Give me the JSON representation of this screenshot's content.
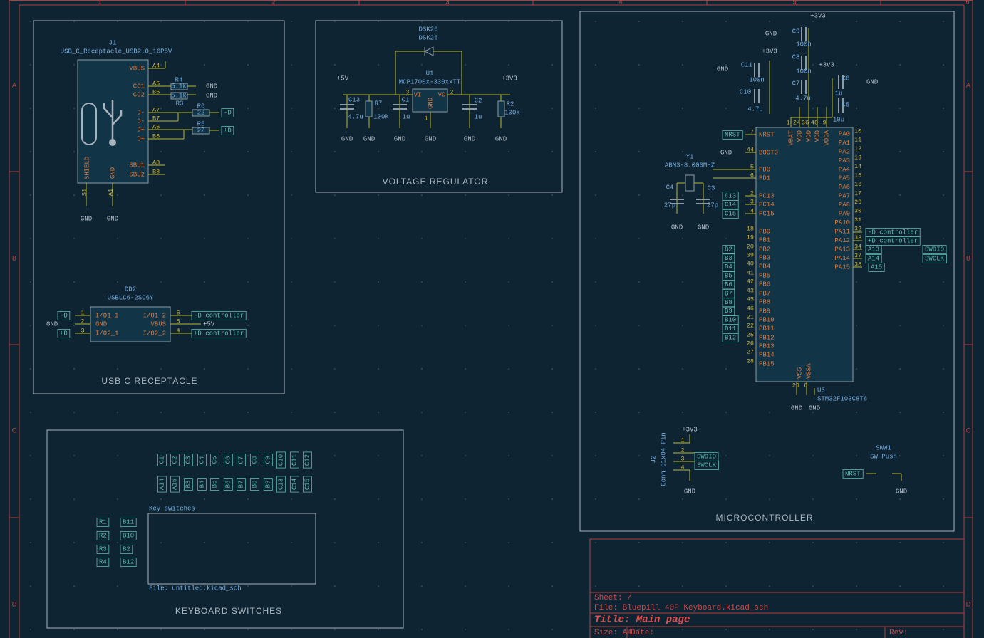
{
  "frame": {
    "columns": [
      "1",
      "2",
      "3",
      "4",
      "5",
      "6"
    ],
    "rows": [
      "A",
      "B",
      "C",
      "D"
    ]
  },
  "title_block": {
    "sheet": "Sheet: /",
    "file": "File: Bluepill 40P Keyboard.kicad_sch",
    "title": "Title: Main page",
    "size": "Size: A4",
    "date": "Date:",
    "rev": "Rev:"
  },
  "usb": {
    "title": "USB C RECEPTACLE",
    "j1": {
      "ref": "J1",
      "value": "USB_C_Receptacle_USB2.0_16P5V",
      "pin_names": [
        "VBUS",
        "CC1",
        "CC2",
        "D-",
        "D-",
        "D+",
        "D+",
        "SBU1",
        "SBU2"
      ],
      "pin_numbers": [
        "A4",
        "A5",
        "B5",
        "A7",
        "B7",
        "A6",
        "B6",
        "A8",
        "B8"
      ],
      "bottom_names": [
        "SHIELD",
        "GND"
      ],
      "bottom_numbers": [
        "S1",
        "A1"
      ]
    },
    "resistors": [
      {
        "ref": "R4",
        "value": "5.1k"
      },
      {
        "ref": "R3",
        "value": "5.1k"
      },
      {
        "ref": "R6",
        "value": "22"
      },
      {
        "ref": "R5",
        "value": "22"
      }
    ],
    "power": [
      "GND",
      "GND",
      "GND",
      "GND"
    ],
    "labels": [
      "-D",
      "+D"
    ],
    "dd2": {
      "ref": "DD2",
      "value": "USBLC6-2SC6Y",
      "pin_names": [
        "I/O1_1",
        "GND",
        "I/O2_1",
        "I/O1_2",
        "VBUS",
        "I/O2_2"
      ],
      "pin_numbers": [
        "1",
        "2",
        "3",
        "6",
        "5",
        "4"
      ],
      "labels": [
        "-D",
        "GND",
        "+D",
        "-D controller",
        "+5V",
        "+D controller"
      ]
    }
  },
  "regulator": {
    "title": "VOLTAGE REGULATOR",
    "d": {
      "ref": "DSK26",
      "value": "DSK26"
    },
    "u1": {
      "ref": "U1",
      "value": "MCP1700x-330xxTT",
      "pin_names": [
        "VI",
        "VO",
        "GND"
      ],
      "pin_numbers": [
        "3",
        "2",
        "1"
      ]
    },
    "power": [
      "+5V",
      "+3V3"
    ],
    "parts": [
      {
        "ref": "C13",
        "value": "4.7u"
      },
      {
        "ref": "R7",
        "value": "100k"
      },
      {
        "ref": "C1",
        "value": "1u"
      },
      {
        "ref": "C2",
        "value": "1u"
      },
      {
        "ref": "R2",
        "value": "100k"
      }
    ],
    "grounds": [
      "GND",
      "GND",
      "GND",
      "GND",
      "GND",
      "GND"
    ]
  },
  "keyboard": {
    "title": "KEYBOARD SWITCHES",
    "sheet_name": "Key switches",
    "sheet_file": "File: untitled.kicad_sch",
    "top_labels": [
      "C1",
      "C2",
      "C3",
      "C4",
      "C5",
      "C6",
      "C7",
      "C8",
      "C9",
      "C10",
      "C11",
      "C12"
    ],
    "bottom_labels": [
      "A14",
      "A15",
      "B3",
      "B4",
      "B5",
      "B6",
      "B7",
      "B8",
      "B9",
      "C13",
      "C14",
      "C15"
    ],
    "rows": [
      "R1",
      "R2",
      "R3",
      "R4"
    ],
    "row_labels": [
      "B11",
      "B10",
      "B2",
      "B12"
    ]
  },
  "mcu": {
    "title": "MICROCONTROLLER",
    "caps": [
      {
        "ref": "C9",
        "value": "100n"
      },
      {
        "ref": "C8",
        "value": "100n"
      },
      {
        "ref": "C11",
        "value": "100n"
      },
      {
        "ref": "C7",
        "value": "4.7u"
      },
      {
        "ref": "C10",
        "value": "4.7u"
      },
      {
        "ref": "C6",
        "value": "1u"
      },
      {
        "ref": "C5",
        "value": "10u"
      }
    ],
    "cap_power": [
      "+3V3",
      "+3V3",
      "+3V3",
      "GND",
      "GND",
      "GND"
    ],
    "u3": {
      "ref": "U3",
      "value": "STM32F103C8T6",
      "top_names": [
        "VBAT",
        "VDD",
        "VDD",
        "VDD",
        "VDDA"
      ],
      "top_numbers": [
        "1",
        "24",
        "36",
        "48",
        "9"
      ],
      "left_names": [
        "NRST",
        "BOOT0",
        "PD0",
        "PD1",
        "PC13",
        "PC14",
        "PC15",
        "PB0",
        "PB1",
        "PB2",
        "PB3",
        "PB4",
        "PB5",
        "PB6",
        "PB7",
        "PB8",
        "PB9",
        "PB10",
        "PB11",
        "PB12",
        "PB13",
        "PB14",
        "PB15"
      ],
      "left_numbers": [
        "7",
        "44",
        "5",
        "6",
        "2",
        "3",
        "4",
        "18",
        "19",
        "20",
        "39",
        "40",
        "41",
        "42",
        "43",
        "45",
        "46",
        "21",
        "22",
        "25",
        "26",
        "27",
        "28"
      ],
      "right_names": [
        "PA0",
        "PA1",
        "PA2",
        "PA3",
        "PA4",
        "PA5",
        "PA6",
        "PA7",
        "PA8",
        "PA9",
        "PA10",
        "PA11",
        "PA12",
        "PA13",
        "PA14",
        "PA15"
      ],
      "right_numbers": [
        "10",
        "11",
        "12",
        "13",
        "14",
        "15",
        "16",
        "17",
        "29",
        "30",
        "31",
        "32",
        "33",
        "34",
        "37",
        "38"
      ],
      "bottom_names": [
        "VSS",
        "VSSA"
      ],
      "bottom_numbers": [
        "23",
        "8"
      ]
    },
    "left_labels": [
      "NRST",
      "GND",
      "C13",
      "C14",
      "C15",
      "B2",
      "B3",
      "B4",
      "B5",
      "B6",
      "B7",
      "B8",
      "B9",
      "B10",
      "B11",
      "B12"
    ],
    "right_labels": [
      "-D controller",
      "+D controller",
      "A13",
      "A14",
      "A15",
      "SWDIO",
      "SWCLK"
    ],
    "grounds": [
      "GND",
      "GND"
    ],
    "y1": {
      "ref": "Y1",
      "value": "ABM3-8.000MHZ"
    },
    "crystal_caps": [
      {
        "ref": "C4",
        "value": "27p"
      },
      {
        "ref": "C3",
        "value": "27p"
      }
    ],
    "crystal_grounds": [
      "GND",
      "GND"
    ],
    "j2": {
      "ref": "J2",
      "value": "Conn_01x04_Pin",
      "pin_numbers": [
        "1",
        "2",
        "3",
        "4"
      ],
      "power": [
        "+3V3",
        "GND"
      ],
      "labels": [
        "SWDIO",
        "SWCLK"
      ]
    },
    "sw": {
      "ref": "SWW1",
      "value": "SW_Push",
      "label": "NRST",
      "ground": "GND"
    }
  }
}
